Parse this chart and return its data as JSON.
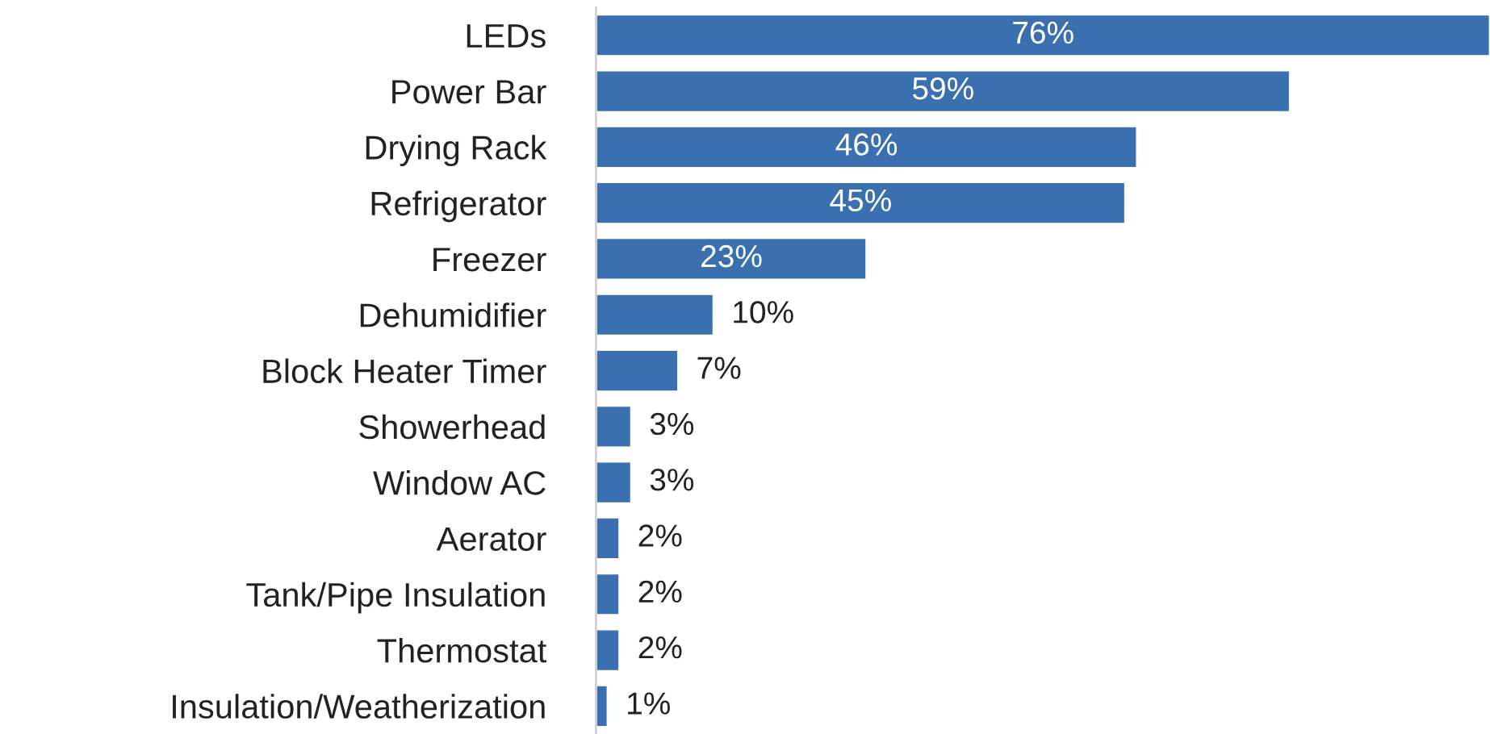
{
  "chart_data": {
    "type": "bar",
    "orientation": "horizontal",
    "data_labels": true,
    "color": "#3a70b0",
    "categories": [
      "LEDs",
      "Power Bar",
      "Drying Rack",
      "Refrigerator",
      "Freezer",
      "Dehumidifier",
      "Block Heater Timer",
      "Showerhead",
      "Window AC",
      "Aerator",
      "Tank/Pipe Insulation",
      "Thermostat",
      "Insulation/Weatherization"
    ],
    "values": [
      76,
      59,
      46,
      45,
      23,
      10,
      7,
      3,
      3,
      2,
      2,
      2,
      1
    ],
    "value_labels": [
      "76%",
      "59%",
      "46%",
      "45%",
      "23%",
      "10%",
      "7%",
      "3%",
      "3%",
      "2%",
      "2%",
      "2%",
      "1%"
    ]
  }
}
